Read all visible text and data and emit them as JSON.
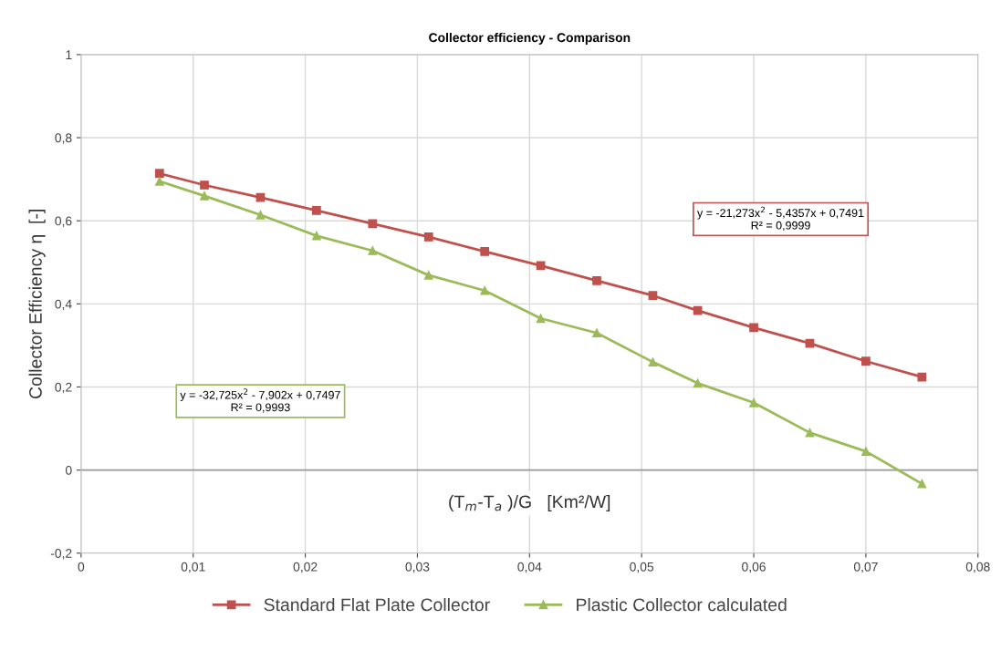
{
  "chart_data": {
    "type": "line",
    "title": "Collector efficiency - Comparison",
    "xlabel": "(T$_{m}$-T$_{a}$ )/G   [Km²/W]",
    "ylabel": "Collector Efficiency η  [-]",
    "x": [
      0.007,
      0.011,
      0.016,
      0.021,
      0.026,
      0.031,
      0.036,
      0.041,
      0.046,
      0.051,
      0.055,
      0.06,
      0.065,
      0.07,
      0.075
    ],
    "series": [
      {
        "name": "Standard Flat Plate Collector",
        "color": "#c0504d",
        "marker": "square",
        "values": [
          0.714,
          0.686,
          0.656,
          0.625,
          0.593,
          0.561,
          0.526,
          0.492,
          0.456,
          0.42,
          0.384,
          0.343,
          0.305,
          0.262,
          0.224
        ]
      },
      {
        "name": "Plastic Collector calculated",
        "color": "#9bbb59",
        "marker": "triangle",
        "values": [
          0.695,
          0.66,
          0.614,
          0.564,
          0.528,
          0.469,
          0.432,
          0.365,
          0.33,
          0.26,
          0.209,
          0.162,
          0.09,
          0.045,
          -0.033
        ]
      }
    ],
    "annotations": [
      "y = -21,273x$^{2}$ - 5,4357x + 0,7491\nR² = 0,9999",
      "y = -32,725x$^{2}$ - 7,902x + 0,7497\nR² = 0,9993"
    ],
    "xlim": [
      0,
      0.08
    ],
    "xticks": [
      0,
      {
        "value": 0.01,
        "label": "0,01"
      },
      {
        "value": 0.02,
        "label": "0,02"
      },
      {
        "value": 0.03,
        "label": "0,03"
      },
      {
        "value": 0.04,
        "label": "0,04"
      },
      {
        "value": 0.05,
        "label": "0,05"
      },
      {
        "value": 0.06,
        "label": "0,06"
      },
      {
        "value": 0.07,
        "label": "0,07"
      },
      {
        "value": 0.08,
        "label": "0,08"
      }
    ],
    "ylim": [
      -0.2,
      1
    ],
    "yticks": [
      {
        "value": -0.2,
        "label": "-0,2"
      },
      0,
      {
        "value": 0.2,
        "label": "0,2"
      },
      {
        "value": 0.4,
        "label": "0,4"
      },
      {
        "value": 0.6,
        "label": "0,6"
      },
      {
        "value": 0.8,
        "label": "0,8"
      },
      1
    ],
    "grid": true,
    "legend": "bottom"
  }
}
